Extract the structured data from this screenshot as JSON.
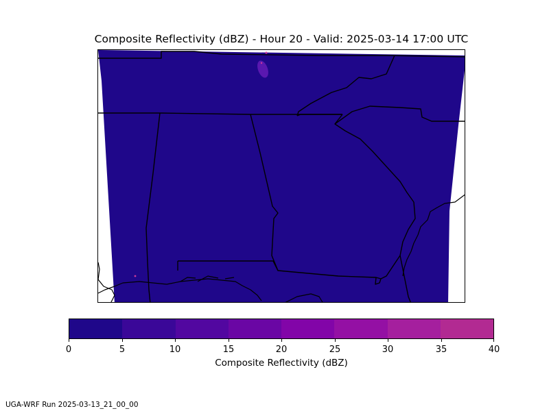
{
  "title": "Composite Reflectivity (dBZ) - Hour 20 - Valid: 2025-03-14 17:00 UTC",
  "colorbar": {
    "label": "Composite Reflectivity (dBZ)",
    "ticks": [
      "0",
      "5",
      "10",
      "15",
      "20",
      "25",
      "30",
      "35",
      "40"
    ],
    "colors": [
      "#1f078a",
      "#3a0798",
      "#5207a0",
      "#6a06a4",
      "#8205a8",
      "#9410a4",
      "#a51f9e",
      "#b22a92",
      "#bc3585"
    ]
  },
  "map": {
    "field_color": "#1f078a",
    "light_echo_color": "#5a18b0",
    "spot_color": "#d03a9a"
  },
  "footer": "UGA-WRF Run 2025-03-13_21_00_00"
}
